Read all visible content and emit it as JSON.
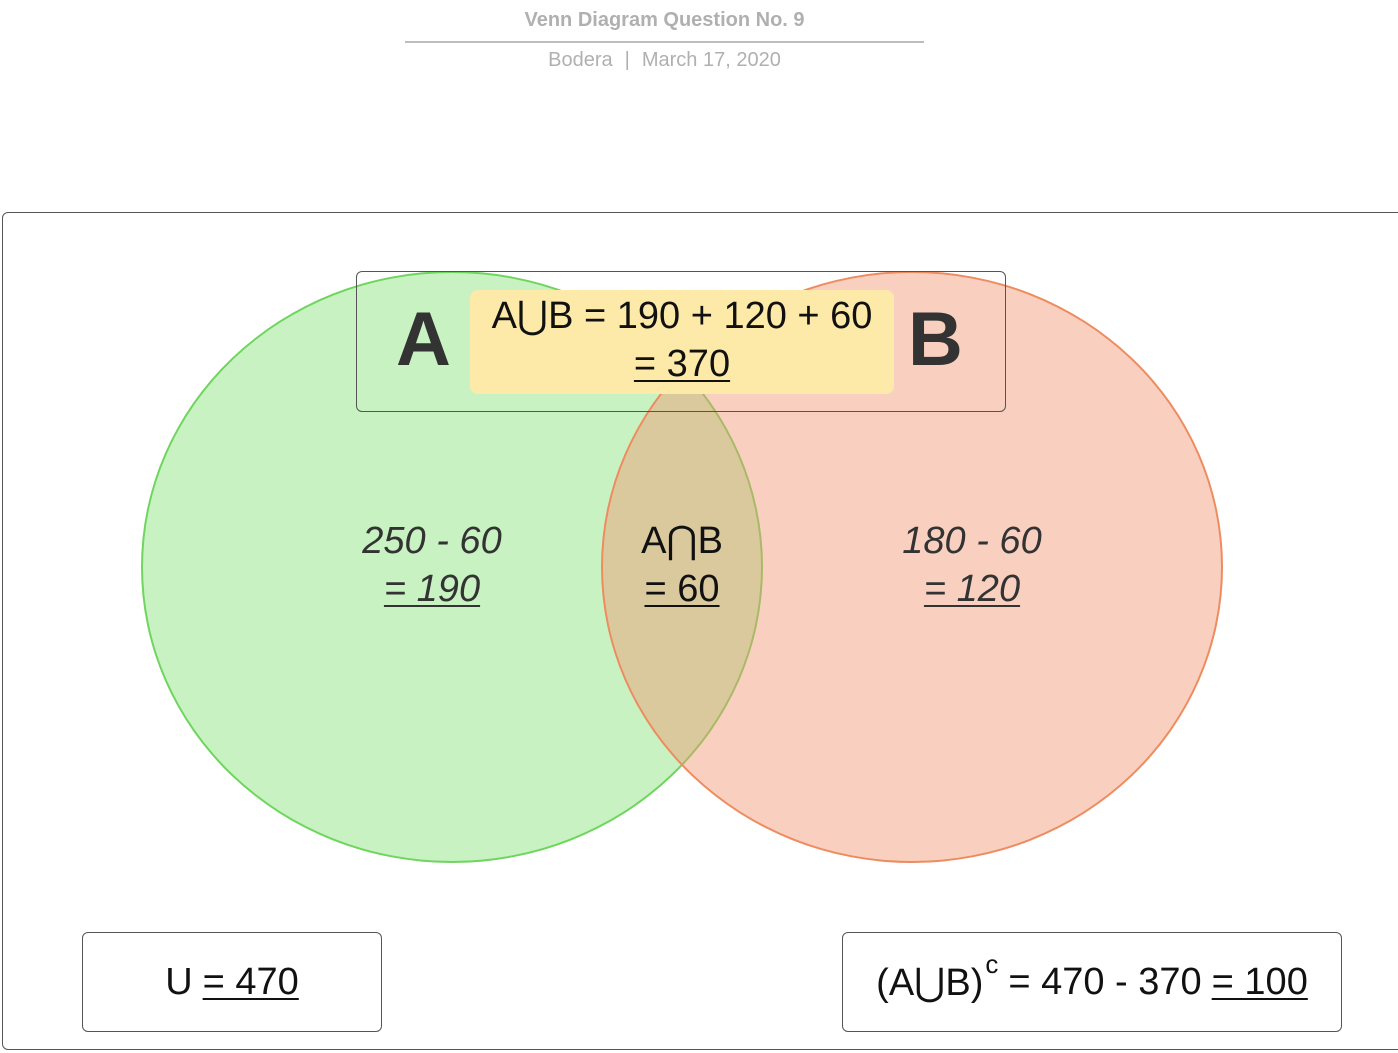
{
  "header": {
    "title": "Venn Diagram Question No. 9",
    "author": "Bodera",
    "separator": "|",
    "date": "March 17, 2020"
  },
  "sets": {
    "a_label": "A",
    "b_label": "B"
  },
  "union_note": {
    "line1": "A⋃B = 190 + 120 + 60",
    "line2": "= 370"
  },
  "regions": {
    "a_only": {
      "expr": "250 - 60",
      "result": "= 190"
    },
    "intersection": {
      "label": "A⋂B",
      "result": "= 60"
    },
    "b_only": {
      "expr": "180 - 60",
      "result": "= 120"
    }
  },
  "universe": {
    "label": "U",
    "value": "= 470"
  },
  "complement": {
    "prefix": "(A⋃B)",
    "sup": "c",
    "expr": "= 470 - 370",
    "result": "= 100"
  },
  "colors": {
    "set_a_fill": "#c8f1c2",
    "set_a_stroke": "#6fd55e",
    "set_b_fill": "#f8d2c3",
    "set_b_stroke": "#ee8c5f",
    "note_fill": "#fde9a8"
  }
}
